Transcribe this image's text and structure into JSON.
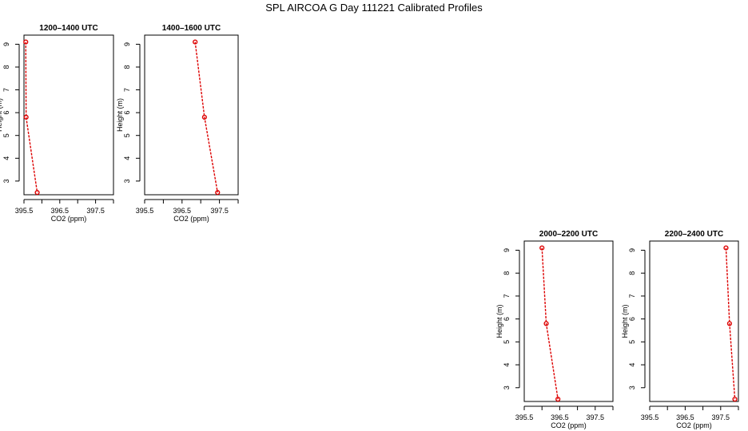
{
  "title": "SPL AIRCOA G  Day 111221  Calibrated Profiles",
  "colors": {
    "series": "#dd0000",
    "axis": "#000000"
  },
  "chart_data": [
    {
      "type": "line",
      "title": "1200–1400 UTC",
      "xlabel": "CO2 (ppm)",
      "ylabel": "Height (m)",
      "xlim": [
        395.5,
        398.0
      ],
      "ylim": [
        2.4,
        9.4
      ],
      "xticks": [
        "395.5",
        "396.5",
        "397.5"
      ],
      "xtick_values": [
        395.5,
        396,
        396.5,
        397,
        397.5,
        398
      ],
      "yticks": [
        "3",
        "4",
        "5",
        "6",
        "7",
        "8",
        "9"
      ],
      "ytick_values": [
        3,
        4,
        5,
        6,
        7,
        8,
        9
      ],
      "points": [
        {
          "x": 395.55,
          "y": 9.1
        },
        {
          "x": 395.56,
          "y": 5.8
        },
        {
          "x": 395.87,
          "y": 2.5
        }
      ]
    },
    {
      "type": "line",
      "title": "1400–1600 UTC",
      "xlabel": "CO2 (ppm)",
      "ylabel": "Height (m)",
      "xlim": [
        395.5,
        398.0
      ],
      "ylim": [
        2.4,
        9.4
      ],
      "xticks": [
        "395.5",
        "396.5",
        "397.5"
      ],
      "xtick_values": [
        395.5,
        396,
        396.5,
        397,
        397.5,
        398
      ],
      "yticks": [
        "3",
        "4",
        "5",
        "6",
        "7",
        "8",
        "9"
      ],
      "ytick_values": [
        3,
        4,
        5,
        6,
        7,
        8,
        9
      ],
      "points": [
        {
          "x": 396.85,
          "y": 9.1
        },
        {
          "x": 397.1,
          "y": 5.8
        },
        {
          "x": 397.45,
          "y": 2.5
        }
      ]
    },
    {
      "type": "line",
      "title": "2000–2200 UTC",
      "xlabel": "CO2 (ppm)",
      "ylabel": "Height (m)",
      "xlim": [
        395.5,
        398.0
      ],
      "ylim": [
        2.4,
        9.4
      ],
      "xticks": [
        "395.5",
        "396.5",
        "397.5"
      ],
      "xtick_values": [
        395.5,
        396,
        396.5,
        397,
        397.5,
        398
      ],
      "yticks": [
        "3",
        "4",
        "5",
        "6",
        "7",
        "8",
        "9"
      ],
      "ytick_values": [
        3,
        4,
        5,
        6,
        7,
        8,
        9
      ],
      "points": [
        {
          "x": 396.0,
          "y": 9.1
        },
        {
          "x": 396.12,
          "y": 5.8
        },
        {
          "x": 396.45,
          "y": 2.5
        }
      ]
    },
    {
      "type": "line",
      "title": "2200–2400 UTC",
      "xlabel": "CO2 (ppm)",
      "ylabel": "Height (m)",
      "xlim": [
        395.5,
        398.0
      ],
      "ylim": [
        2.4,
        9.4
      ],
      "xticks": [
        "395.5",
        "396.5",
        "397.5"
      ],
      "xtick_values": [
        395.5,
        396,
        396.5,
        397,
        397.5,
        398
      ],
      "yticks": [
        "3",
        "4",
        "5",
        "6",
        "7",
        "8",
        "9"
      ],
      "ytick_values": [
        3,
        4,
        5,
        6,
        7,
        8,
        9
      ],
      "points": [
        {
          "x": 397.65,
          "y": 9.1
        },
        {
          "x": 397.75,
          "y": 5.8
        },
        {
          "x": 397.9,
          "y": 2.5
        }
      ]
    }
  ]
}
